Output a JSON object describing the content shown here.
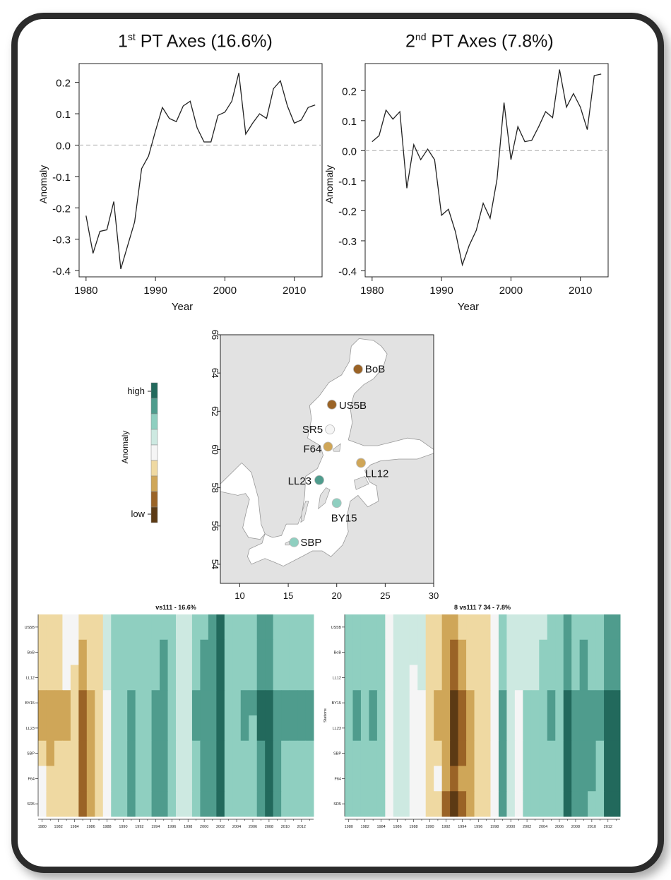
{
  "colors": {
    "scale": [
      "#5c3a14",
      "#9a6326",
      "#cfa658",
      "#efd9a2",
      "#f5f5f5",
      "#cde9e1",
      "#8fcfc0",
      "#4f9c8d",
      "#22695c"
    ],
    "land": "#e2e2e2",
    "sea": "#ffffff",
    "line": "#222222"
  },
  "pt1": {
    "title_pre": "1",
    "title_sup": "st",
    "title_post": " PT Axes (16.6%)"
  },
  "pt2": {
    "title_pre": "2",
    "title_sup": "nd",
    "title_post": " PT Axes (7.8%)"
  },
  "chart_data": [
    {
      "type": "line",
      "title": "1st PT Axes (16.6%)",
      "xlabel": "Year",
      "ylabel": "Anomaly",
      "xlim": [
        1979,
        2014
      ],
      "ylim": [
        -0.42,
        0.26
      ],
      "xticks": [
        1980,
        1990,
        2000,
        2010
      ],
      "yticks": [
        0.2,
        0.1,
        0.0,
        -0.1,
        -0.2,
        -0.3,
        -0.4
      ],
      "ytick_labels": [
        "0.2",
        "0.1",
        "0.0",
        "-0.1",
        "-0.2",
        "-0.3",
        "-0.4"
      ],
      "reference_line": 0,
      "x": [
        1980,
        1981,
        1982,
        1983,
        1984,
        1985,
        1986,
        1987,
        1988,
        1989,
        1990,
        1991,
        1992,
        1993,
        1994,
        1995,
        1996,
        1997,
        1998,
        1999,
        2000,
        2001,
        2002,
        2003,
        2004,
        2005,
        2006,
        2007,
        2008,
        2009,
        2010,
        2011,
        2012,
        2013
      ],
      "y": [
        -0.225,
        -0.345,
        -0.275,
        -0.27,
        -0.18,
        -0.395,
        -0.32,
        -0.245,
        -0.075,
        -0.035,
        0.045,
        0.12,
        0.085,
        0.075,
        0.125,
        0.14,
        0.055,
        0.01,
        0.01,
        0.095,
        0.105,
        0.14,
        0.23,
        0.035,
        0.07,
        0.1,
        0.085,
        0.18,
        0.205,
        0.125,
        0.07,
        0.08,
        0.12,
        0.128
      ]
    },
    {
      "type": "line",
      "title": "2nd PT Axes (7.8%)",
      "xlabel": "Year",
      "ylabel": "Anomaly",
      "xlim": [
        1979,
        2014
      ],
      "ylim": [
        -0.42,
        0.29
      ],
      "xticks": [
        1980,
        1990,
        2000,
        2010
      ],
      "yticks": [
        0.2,
        0.1,
        0.0,
        -0.1,
        -0.2,
        -0.3,
        -0.4
      ],
      "ytick_labels": [
        "0.2",
        "0.1",
        "0.0",
        "-0.1",
        "-0.2",
        "-0.3",
        "-0.4"
      ],
      "reference_line": 0,
      "x": [
        1980,
        1981,
        1982,
        1983,
        1984,
        1985,
        1986,
        1987,
        1988,
        1989,
        1990,
        1991,
        1992,
        1993,
        1994,
        1995,
        1996,
        1997,
        1998,
        1999,
        2000,
        2001,
        2002,
        2003,
        2004,
        2005,
        2006,
        2007,
        2008,
        2009,
        2010,
        2011,
        2012,
        2013
      ],
      "y": [
        0.03,
        0.05,
        0.135,
        0.105,
        0.13,
        -0.125,
        0.02,
        -0.03,
        0.005,
        -0.03,
        -0.215,
        -0.195,
        -0.27,
        -0.38,
        -0.315,
        -0.265,
        -0.175,
        -0.225,
        -0.095,
        0.16,
        -0.03,
        0.08,
        0.03,
        0.035,
        0.08,
        0.13,
        0.11,
        0.27,
        0.145,
        0.19,
        0.145,
        0.07,
        0.25,
        0.255
      ]
    },
    {
      "type": "scatter",
      "subtype": "map",
      "xlim": [
        8,
        30
      ],
      "ylim": [
        53,
        66
      ],
      "xticks": [
        10,
        15,
        20,
        25,
        30
      ],
      "yticks": [
        54,
        56,
        58,
        60,
        62,
        64,
        66
      ],
      "stations": [
        {
          "name": "BoB",
          "lon": 22.2,
          "lat": 64.2,
          "level": 1
        },
        {
          "name": "US5B",
          "lon": 19.5,
          "lat": 62.35,
          "level": 1
        },
        {
          "name": "SR5",
          "lon": 19.3,
          "lat": 61.05,
          "level": 4
        },
        {
          "name": "F64",
          "lon": 19.1,
          "lat": 60.15,
          "level": 2
        },
        {
          "name": "LL12",
          "lon": 22.5,
          "lat": 59.3,
          "level": 2
        },
        {
          "name": "LL23",
          "lon": 18.2,
          "lat": 58.4,
          "level": 7
        },
        {
          "name": "BY15",
          "lon": 20.0,
          "lat": 57.2,
          "level": 6
        },
        {
          "name": "SBP",
          "lon": 15.6,
          "lat": 55.15,
          "level": 6
        }
      ],
      "legend": {
        "title": "Anomaly",
        "high": "high",
        "low": "low",
        "levels": 9
      }
    },
    {
      "type": "heatmap",
      "title": "vs111 - 16.6%",
      "rows": [
        "US5B",
        "BoB",
        "LL12",
        "BY15",
        "LL23",
        "SBP",
        "F64",
        "SR5"
      ],
      "row_label_text": [
        "US5B",
        "BoB",
        "LL12",
        "BY15",
        "LL23",
        "SBP",
        "F64",
        "SR5"
      ],
      "columns": [
        1980,
        1981,
        1982,
        1983,
        1984,
        1985,
        1986,
        1987,
        1988,
        1989,
        1990,
        1991,
        1992,
        1993,
        1994,
        1995,
        1996,
        1997,
        1998,
        1999,
        2000,
        2001,
        2002,
        2003,
        2004,
        2005,
        2006,
        2007,
        2008,
        2009,
        2010,
        2011,
        2012,
        2013
      ],
      "xtick_labels": [
        "1980",
        "1982",
        "1984",
        "1986",
        "1988",
        "1990",
        "1992",
        "1994",
        "1996",
        "1998",
        "2000",
        "2002",
        "2004",
        "2006",
        "2008",
        "2010",
        "2012"
      ],
      "value_scale": "0 = low (dark brown) ... 8 = high (dark teal)",
      "values": [
        [
          3,
          3,
          3,
          4,
          4,
          3,
          3,
          3,
          5,
          6,
          6,
          6,
          6,
          6,
          6,
          6,
          6,
          5,
          5,
          6,
          6,
          7,
          8,
          6,
          6,
          6,
          6,
          7,
          7,
          6,
          6,
          6,
          6,
          6
        ],
        [
          3,
          3,
          3,
          4,
          4,
          2,
          3,
          3,
          5,
          6,
          6,
          6,
          6,
          6,
          6,
          7,
          6,
          5,
          5,
          6,
          7,
          7,
          8,
          6,
          6,
          6,
          6,
          7,
          7,
          6,
          6,
          6,
          6,
          6
        ],
        [
          3,
          3,
          3,
          4,
          3,
          2,
          3,
          3,
          5,
          6,
          6,
          6,
          6,
          6,
          6,
          7,
          6,
          5,
          5,
          6,
          7,
          7,
          8,
          6,
          6,
          6,
          6,
          7,
          7,
          6,
          6,
          6,
          6,
          6
        ],
        [
          2,
          2,
          2,
          2,
          3,
          1,
          2,
          3,
          4,
          6,
          6,
          7,
          6,
          6,
          7,
          7,
          6,
          5,
          5,
          7,
          7,
          7,
          8,
          6,
          6,
          7,
          7,
          8,
          8,
          7,
          7,
          7,
          7,
          7
        ],
        [
          2,
          2,
          2,
          2,
          3,
          1,
          2,
          3,
          4,
          6,
          6,
          7,
          6,
          6,
          7,
          7,
          6,
          5,
          5,
          7,
          7,
          7,
          8,
          6,
          6,
          7,
          6,
          8,
          8,
          7,
          7,
          7,
          7,
          7
        ],
        [
          3,
          2,
          3,
          3,
          3,
          1,
          2,
          3,
          4,
          6,
          6,
          7,
          6,
          6,
          7,
          7,
          6,
          5,
          5,
          6,
          7,
          7,
          8,
          6,
          6,
          6,
          6,
          7,
          8,
          7,
          6,
          6,
          6,
          6
        ],
        [
          4,
          3,
          3,
          3,
          3,
          1,
          2,
          3,
          4,
          6,
          6,
          7,
          6,
          6,
          7,
          7,
          6,
          5,
          5,
          6,
          7,
          7,
          8,
          6,
          6,
          6,
          6,
          7,
          8,
          7,
          6,
          6,
          6,
          6
        ],
        [
          4,
          3,
          3,
          3,
          3,
          1,
          2,
          3,
          4,
          6,
          6,
          7,
          6,
          6,
          7,
          7,
          6,
          5,
          5,
          6,
          7,
          7,
          8,
          6,
          6,
          6,
          6,
          7,
          8,
          7,
          6,
          6,
          6,
          6
        ]
      ]
    },
    {
      "type": "heatmap",
      "title": "8 vs111 7 34 - 7.8%",
      "ylabel": "Stations",
      "rows": [
        "US5B",
        "BoB",
        "LL12",
        "BY15",
        "LL23",
        "SBP",
        "F64",
        "SR5"
      ],
      "row_label_text": [
        "US5B",
        "BoB",
        "LL12",
        "BY15",
        "LL23",
        "SBP",
        "F64",
        "SR5"
      ],
      "columns": [
        1980,
        1981,
        1982,
        1983,
        1984,
        1985,
        1986,
        1987,
        1988,
        1989,
        1990,
        1991,
        1992,
        1993,
        1994,
        1995,
        1996,
        1997,
        1998,
        1999,
        2000,
        2001,
        2002,
        2003,
        2004,
        2005,
        2006,
        2007,
        2008,
        2009,
        2010,
        2011,
        2012,
        2013
      ],
      "xtick_labels": [
        "1980",
        "1982",
        "1984",
        "1986",
        "1988",
        "1990",
        "1992",
        "1994",
        "1996",
        "1998",
        "2000",
        "2002",
        "2004",
        "2006",
        "2008",
        "2010",
        "2012"
      ],
      "value_scale": "0 = low (dark brown) ... 8 = high (dark teal)",
      "values": [
        [
          6,
          6,
          6,
          6,
          6,
          4,
          5,
          5,
          5,
          5,
          3,
          3,
          2,
          2,
          3,
          3,
          3,
          3,
          4,
          6,
          5,
          5,
          5,
          5,
          5,
          6,
          6,
          7,
          6,
          6,
          6,
          6,
          7,
          7
        ],
        [
          6,
          6,
          6,
          6,
          6,
          4,
          5,
          5,
          5,
          5,
          3,
          3,
          2,
          1,
          2,
          3,
          3,
          3,
          4,
          6,
          5,
          5,
          5,
          5,
          6,
          6,
          6,
          7,
          6,
          7,
          6,
          6,
          7,
          7
        ],
        [
          6,
          6,
          6,
          6,
          6,
          4,
          5,
          5,
          4,
          5,
          3,
          3,
          2,
          1,
          2,
          3,
          3,
          3,
          4,
          6,
          5,
          5,
          5,
          5,
          6,
          6,
          6,
          7,
          6,
          7,
          6,
          6,
          7,
          7
        ],
        [
          6,
          7,
          6,
          7,
          6,
          4,
          5,
          5,
          4,
          4,
          3,
          2,
          2,
          0,
          1,
          2,
          3,
          3,
          4,
          7,
          5,
          4,
          6,
          6,
          6,
          7,
          6,
          8,
          7,
          7,
          7,
          7,
          8,
          8
        ],
        [
          6,
          7,
          6,
          7,
          6,
          4,
          5,
          5,
          4,
          4,
          3,
          2,
          2,
          0,
          1,
          2,
          3,
          3,
          4,
          7,
          5,
          4,
          6,
          6,
          6,
          7,
          6,
          8,
          7,
          7,
          7,
          7,
          8,
          8
        ],
        [
          6,
          6,
          6,
          6,
          6,
          4,
          5,
          5,
          4,
          4,
          3,
          3,
          2,
          0,
          1,
          2,
          3,
          3,
          4,
          7,
          5,
          4,
          6,
          6,
          6,
          6,
          6,
          8,
          7,
          7,
          7,
          6,
          8,
          8
        ],
        [
          6,
          6,
          6,
          6,
          6,
          4,
          5,
          5,
          4,
          4,
          3,
          4,
          2,
          1,
          2,
          2,
          3,
          3,
          4,
          7,
          5,
          4,
          6,
          6,
          6,
          6,
          6,
          8,
          7,
          7,
          7,
          6,
          8,
          8
        ],
        [
          6,
          6,
          6,
          6,
          6,
          4,
          5,
          5,
          4,
          4,
          3,
          3,
          1,
          0,
          1,
          2,
          3,
          3,
          4,
          7,
          5,
          4,
          6,
          6,
          6,
          6,
          6,
          8,
          7,
          7,
          6,
          6,
          8,
          8
        ]
      ]
    }
  ]
}
